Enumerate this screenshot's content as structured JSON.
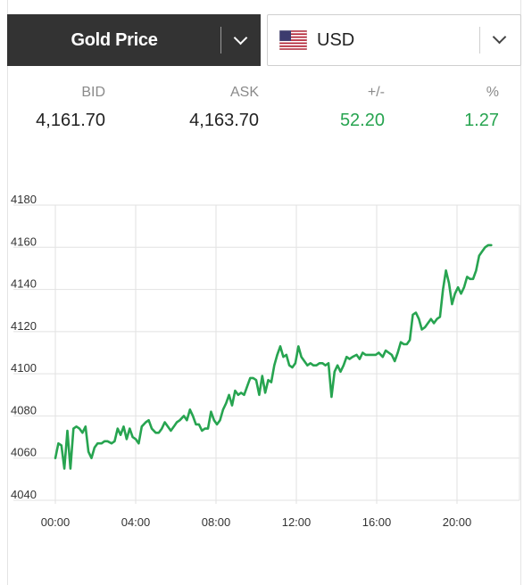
{
  "metal_select": {
    "label": "Gold Price"
  },
  "currency_select": {
    "label": "USD",
    "flag": "us-flag-icon"
  },
  "quote": {
    "bid_label": "BID",
    "bid": "4,161.70",
    "ask_label": "ASK",
    "ask": "4,163.70",
    "change_label": "+/-",
    "change": "52.20",
    "percent_label": "%",
    "percent": "1.27"
  },
  "colors": {
    "line": "#27a450",
    "header_bg": "#333333",
    "positive": "#27a450"
  },
  "chart_data": {
    "type": "line",
    "x_unit": "hours",
    "ylim": [
      4040,
      4180
    ],
    "xlim": [
      0,
      23
    ],
    "yticks": [
      4040,
      4060,
      4080,
      4100,
      4120,
      4140,
      4160,
      4180
    ],
    "xticks": [
      {
        "value": 0,
        "label": "00:00"
      },
      {
        "value": 4,
        "label": "04:00"
      },
      {
        "value": 8,
        "label": "08:00"
      },
      {
        "value": 12,
        "label": "12:00"
      },
      {
        "value": 16,
        "label": "16:00"
      },
      {
        "value": 20,
        "label": "20:00"
      }
    ],
    "grid": true,
    "series": [
      {
        "points": [
          [
            0,
            4060
          ],
          [
            0.15,
            4067
          ],
          [
            0.3,
            4066
          ],
          [
            0.45,
            4055
          ],
          [
            0.6,
            4073
          ],
          [
            0.75,
            4055
          ],
          [
            0.9,
            4074
          ],
          [
            1.05,
            4075
          ],
          [
            1.2,
            4074
          ],
          [
            1.35,
            4072
          ],
          [
            1.5,
            4075
          ],
          [
            1.65,
            4063
          ],
          [
            1.8,
            4060
          ],
          [
            1.95,
            4065
          ],
          [
            2.1,
            4067
          ],
          [
            2.3,
            4067
          ],
          [
            2.45,
            4068
          ],
          [
            2.6,
            4068
          ],
          [
            2.8,
            4067
          ],
          [
            2.95,
            4068
          ],
          [
            3.1,
            4074
          ],
          [
            3.25,
            4071
          ],
          [
            3.4,
            4075
          ],
          [
            3.55,
            4069
          ],
          [
            3.7,
            4074
          ],
          [
            3.85,
            4070
          ],
          [
            4.0,
            4069
          ],
          [
            4.15,
            4067
          ],
          [
            4.3,
            4075
          ],
          [
            4.5,
            4077
          ],
          [
            4.65,
            4078
          ],
          [
            4.8,
            4074
          ],
          [
            5.0,
            4072
          ],
          [
            5.15,
            4072
          ],
          [
            5.3,
            4074
          ],
          [
            5.45,
            4077
          ],
          [
            5.6,
            4075
          ],
          [
            5.75,
            4073
          ],
          [
            5.9,
            4075
          ],
          [
            6.05,
            4077
          ],
          [
            6.2,
            4078
          ],
          [
            6.4,
            4080
          ],
          [
            6.55,
            4078
          ],
          [
            6.7,
            4083
          ],
          [
            6.85,
            4080
          ],
          [
            7.0,
            4076
          ],
          [
            7.15,
            4076
          ],
          [
            7.3,
            4073
          ],
          [
            7.45,
            4074
          ],
          [
            7.6,
            4074
          ],
          [
            7.75,
            4082
          ],
          [
            7.9,
            4078
          ],
          [
            8.05,
            4076
          ],
          [
            8.2,
            4078
          ],
          [
            8.35,
            4083
          ],
          [
            8.5,
            4086
          ],
          [
            8.65,
            4090
          ],
          [
            8.8,
            4085
          ],
          [
            8.95,
            4092
          ],
          [
            9.1,
            4090
          ],
          [
            9.25,
            4091
          ],
          [
            9.4,
            4090
          ],
          [
            9.55,
            4094
          ],
          [
            9.7,
            4098
          ],
          [
            9.85,
            4098
          ],
          [
            10.0,
            4097
          ],
          [
            10.15,
            4090
          ],
          [
            10.3,
            4099
          ],
          [
            10.45,
            4091
          ],
          [
            10.6,
            4097
          ],
          [
            10.75,
            4096
          ],
          [
            10.9,
            4104
          ],
          [
            11.05,
            4109
          ],
          [
            11.2,
            4113
          ],
          [
            11.35,
            4108
          ],
          [
            11.5,
            4109
          ],
          [
            11.65,
            4104
          ],
          [
            11.8,
            4103
          ],
          [
            11.95,
            4105
          ],
          [
            12.1,
            4113
          ],
          [
            12.25,
            4108
          ],
          [
            12.4,
            4106
          ],
          [
            12.55,
            4104
          ],
          [
            12.7,
            4105
          ],
          [
            12.85,
            4104
          ],
          [
            13.0,
            4104
          ],
          [
            13.15,
            4105
          ],
          [
            13.3,
            4105
          ],
          [
            13.45,
            4104
          ],
          [
            13.6,
            4105
          ],
          [
            13.75,
            4089
          ],
          [
            13.9,
            4101
          ],
          [
            14.05,
            4104
          ],
          [
            14.2,
            4101
          ],
          [
            14.35,
            4104
          ],
          [
            14.5,
            4108
          ],
          [
            14.65,
            4107
          ],
          [
            14.8,
            4108
          ],
          [
            15.0,
            4109
          ],
          [
            15.15,
            4107
          ],
          [
            15.3,
            4110
          ],
          [
            15.45,
            4109
          ],
          [
            15.6,
            4109
          ],
          [
            15.8,
            4109
          ],
          [
            15.95,
            4109
          ],
          [
            16.1,
            4110
          ],
          [
            16.3,
            4108
          ],
          [
            16.45,
            4111
          ],
          [
            16.6,
            4110
          ],
          [
            16.75,
            4109
          ],
          [
            16.9,
            4106
          ],
          [
            17.05,
            4110
          ],
          [
            17.2,
            4115
          ],
          [
            17.35,
            4114
          ],
          [
            17.5,
            4114
          ],
          [
            17.65,
            4116
          ],
          [
            17.8,
            4128
          ],
          [
            17.95,
            4129
          ],
          [
            18.1,
            4126
          ],
          [
            18.25,
            4121
          ],
          [
            18.4,
            4122
          ],
          [
            18.55,
            4124
          ],
          [
            18.7,
            4126
          ],
          [
            18.85,
            4124
          ],
          [
            19.0,
            4126
          ],
          [
            19.15,
            4127
          ],
          [
            19.3,
            4140
          ],
          [
            19.45,
            4149
          ],
          [
            19.6,
            4143
          ],
          [
            19.75,
            4133
          ],
          [
            19.9,
            4138
          ],
          [
            20.05,
            4141
          ],
          [
            20.2,
            4138
          ],
          [
            20.35,
            4141
          ],
          [
            20.5,
            4146
          ],
          [
            20.65,
            4145
          ],
          [
            20.8,
            4145
          ],
          [
            20.95,
            4149
          ],
          [
            21.1,
            4156
          ],
          [
            21.25,
            4158
          ],
          [
            21.4,
            4160
          ],
          [
            21.55,
            4161
          ],
          [
            21.7,
            4161
          ]
        ]
      }
    ]
  }
}
